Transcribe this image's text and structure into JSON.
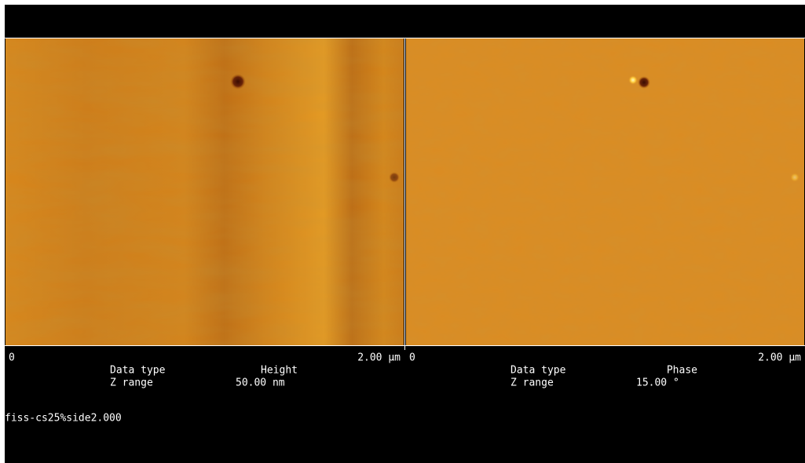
{
  "panels": [
    {
      "axis_start": "0",
      "axis_end": "2.00 µm",
      "data_type_label": "Data type",
      "data_type": "Height",
      "z_range_label": "Z range",
      "z_range": "50.00 nm"
    },
    {
      "axis_start": "0",
      "axis_end": "2.00 µm",
      "data_type_label": "Data type",
      "data_type": "Phase",
      "z_range_label": "Z range",
      "z_range": "15.00 °"
    }
  ],
  "footer": "fiss-cs25%side2.000"
}
